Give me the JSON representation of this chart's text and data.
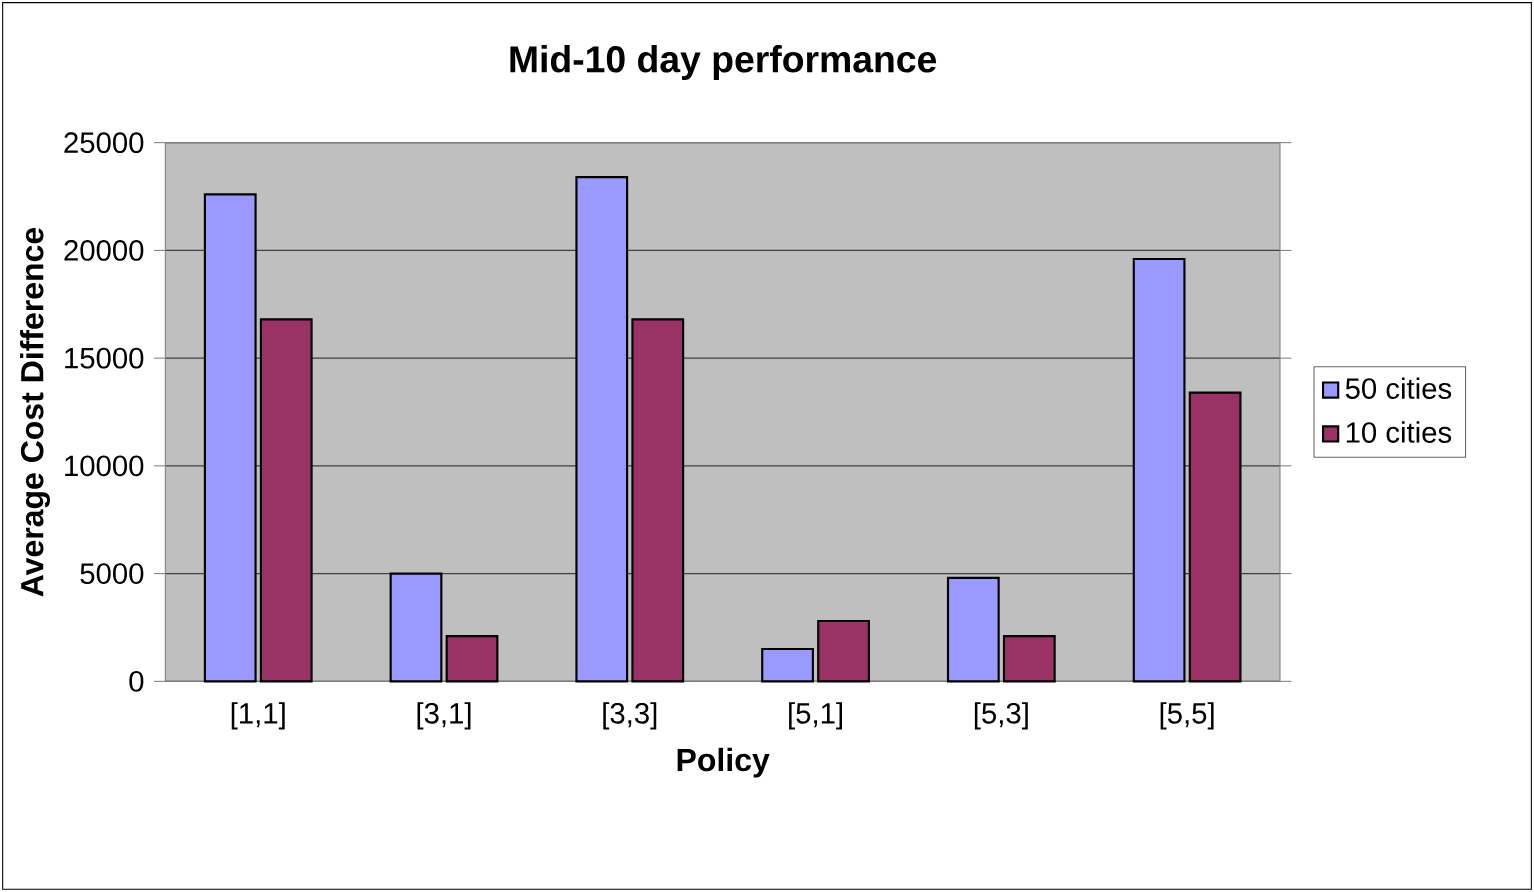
{
  "chart_data": {
    "type": "bar",
    "title": "Mid-10 day performance",
    "xlabel": "Policy",
    "ylabel": "Average Cost Difference",
    "categories": [
      "[1,1]",
      "[3,1]",
      "[3,3]",
      "[5,1]",
      "[5,3]",
      "[5,5]"
    ],
    "series": [
      {
        "name": "50 cities",
        "color": "#9999ff",
        "values": [
          22600,
          5000,
          23400,
          1500,
          4800,
          19600
        ]
      },
      {
        "name": "10 cities",
        "color": "#993366",
        "values": [
          16800,
          2100,
          16800,
          2800,
          2100,
          13400
        ]
      }
    ],
    "ylim": [
      0,
      25000
    ],
    "yticks": [
      0,
      5000,
      10000,
      15000,
      20000,
      25000
    ],
    "grid": "y",
    "legend": "right"
  }
}
